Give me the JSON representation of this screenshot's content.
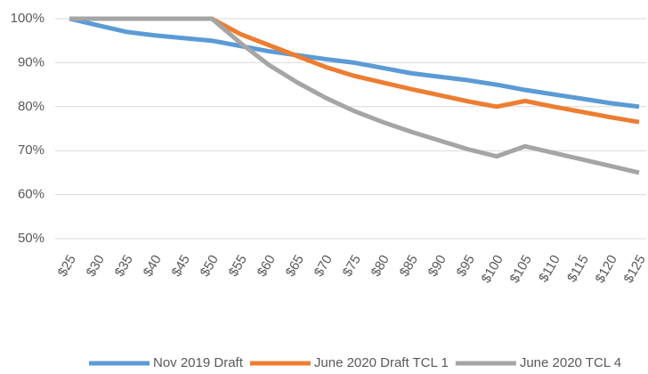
{
  "chart_data": {
    "type": "line",
    "categories": [
      "$25",
      "$30",
      "$35",
      "$40",
      "$45",
      "$50",
      "$55",
      "$60",
      "$65",
      "$70",
      "$75",
      "$80",
      "$85",
      "$90",
      "$95",
      "$100",
      "$105",
      "$110",
      "$115",
      "$120",
      "$125"
    ],
    "series": [
      {
        "name": "Nov 2019 Draft",
        "color": "#5b9bd5",
        "values": [
          100,
          98.5,
          97,
          96.2,
          95.6,
          95,
          93.8,
          92.6,
          91.7,
          90.8,
          90,
          88.8,
          87.6,
          86.8,
          86,
          85,
          83.8,
          82.8,
          81.8,
          80.8,
          80
        ]
      },
      {
        "name": "June 2020 Draft TCL 1",
        "color": "#ed7d31",
        "values": [
          100,
          100,
          100,
          100,
          100,
          100,
          96.5,
          94,
          91.5,
          89,
          87,
          85.5,
          84,
          82.6,
          81.2,
          80,
          81.3,
          80,
          78.8,
          77.6,
          76.5
        ]
      },
      {
        "name": "June 2020 TCL 4",
        "color": "#a5a5a5",
        "values": [
          100,
          100,
          100,
          100,
          100,
          100,
          94.5,
          89.5,
          85.5,
          82,
          79,
          76.5,
          74.3,
          72.3,
          70.3,
          68.7,
          71,
          69.5,
          68,
          66.5,
          65
        ]
      }
    ],
    "ylim": [
      50,
      100
    ],
    "yticks": [
      {
        "value": 50,
        "label": "50%"
      },
      {
        "value": 60,
        "label": "60%"
      },
      {
        "value": 70,
        "label": "70%"
      },
      {
        "value": 80,
        "label": "80%"
      },
      {
        "value": 90,
        "label": "90%"
      },
      {
        "value": 100,
        "label": "100%"
      }
    ],
    "grid": true,
    "legend": "bottom"
  }
}
